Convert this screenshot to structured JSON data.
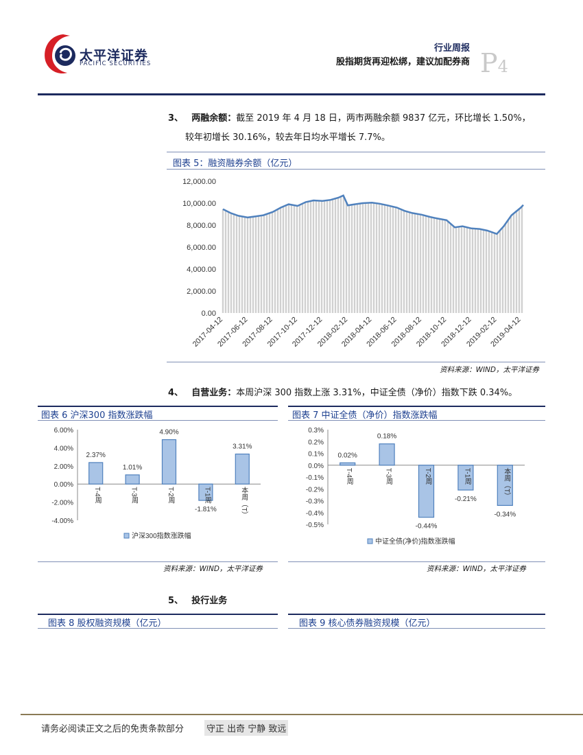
{
  "header": {
    "logo_cn": "太平洋证券",
    "logo_en": "PACIFIC SECURITIES",
    "category": "行业周报",
    "title": "股指期货再迎松绑，建议加配券商",
    "page_letter": "P",
    "page_number": "4"
  },
  "section3": {
    "num": "3、",
    "heading": "两融余额：",
    "line1": "截至 2019 年 4 月 18 日，两市两融余额 9837 亿元，环比增长 1.50%，",
    "line2": "较年初增长 30.16%，较去年日均水平增长 7.7%。"
  },
  "figure5": {
    "title": "图表 5：融资融券余额（亿元）",
    "source": "资料来源：WIND，太平洋证券"
  },
  "section4": {
    "num": "4、",
    "heading": "自营业务：",
    "text": "本周沪深 300 指数上涨 3.31%，中证全债（净价）指数下跌 0.34%。"
  },
  "figure6": {
    "title": "图表 6 沪深300 指数涨跌幅",
    "source": "资料来源：WIND，太平洋证券"
  },
  "figure7": {
    "title": "图表 7 中证全债（净价）指数涨跌幅",
    "source": "资料来源：WIND，太平洋证券"
  },
  "section5": {
    "num": "5、",
    "heading": "投行业务"
  },
  "figure8": {
    "title": "图表 8 股权融资规模（亿元）"
  },
  "figure9": {
    "title": "图表 9 核心债券融资规模（亿元）"
  },
  "footer": {
    "disclaimer": "请务必阅读正文之后的免责条款部分",
    "motto": "守正 出奇 宁静 致远"
  },
  "colors": {
    "navy": "#1c2a5e",
    "bar_fill": "#a9c4e6",
    "bar_stroke": "#4f81bd",
    "line": "#4f81bd",
    "area": "#d0d0d0"
  },
  "chart_data": [
    {
      "type": "area",
      "title": "图表 5：融资融券余额（亿元）",
      "ylim": [
        0,
        12000
      ],
      "yticks": [
        "0.00",
        "2,000.00",
        "4,000.00",
        "6,000.00",
        "8,000.00",
        "10,000.00",
        "12,000.00"
      ],
      "xticks": [
        "2017-04-12",
        "2017-06-12",
        "2017-08-12",
        "2017-10-12",
        "2017-12-12",
        "2018-02-12",
        "2018-04-12",
        "2018-06-12",
        "2018-08-12",
        "2018-10-12",
        "2018-12-12",
        "2019-02-12",
        "2019-04-12"
      ],
      "series": [
        {
          "x": [
            "2017-04-12",
            "2017-05-01",
            "2017-05-20",
            "2017-06-12",
            "2017-07-01",
            "2017-07-20",
            "2017-08-12",
            "2017-09-01",
            "2017-09-20",
            "2017-10-12",
            "2017-11-01",
            "2017-11-20",
            "2017-12-12",
            "2018-01-01",
            "2018-01-20",
            "2018-02-01",
            "2018-02-12",
            "2018-03-01",
            "2018-03-20",
            "2018-04-12",
            "2018-05-01",
            "2018-05-20",
            "2018-06-12",
            "2018-07-01",
            "2018-07-20",
            "2018-08-12",
            "2018-09-01",
            "2018-09-20",
            "2018-10-12",
            "2018-11-01",
            "2018-11-20",
            "2018-12-12",
            "2019-01-01",
            "2019-01-20",
            "2019-02-12",
            "2019-03-01",
            "2019-03-20",
            "2019-04-12",
            "2019-04-18"
          ],
          "values": [
            9450,
            9100,
            8850,
            8700,
            8800,
            8900,
            9200,
            9600,
            9900,
            9750,
            10100,
            10250,
            10200,
            10300,
            10500,
            10700,
            9800,
            9900,
            10000,
            10050,
            9950,
            9800,
            9600,
            9300,
            9100,
            8950,
            8750,
            8600,
            8450,
            7800,
            7900,
            7700,
            7650,
            7500,
            7200,
            7900,
            8900,
            9600,
            9837
          ]
        }
      ]
    },
    {
      "type": "bar",
      "title": "图表 6 沪深300 指数涨跌幅",
      "categories": [
        "T-4周",
        "T-3周",
        "T-2周",
        "T-1周",
        "本周（T）"
      ],
      "series": [
        {
          "name": "沪深300指数涨跌幅",
          "values": [
            2.37,
            1.01,
            4.9,
            -1.81,
            3.31
          ]
        }
      ],
      "labels": [
        "2.37%",
        "1.01%",
        "4.90%",
        "-1.81%",
        "3.31%"
      ],
      "ylim": [
        -4,
        6
      ],
      "yticks": [
        "-4.00%",
        "-2.00%",
        "0.00%",
        "2.00%",
        "4.00%",
        "6.00%"
      ]
    },
    {
      "type": "bar",
      "title": "图表 7 中证全债（净价）指数涨跌幅",
      "categories": [
        "T-4周",
        "T-3周",
        "T-2周",
        "T-1周",
        "本周（T）"
      ],
      "series": [
        {
          "name": "中证全债(净价)指数涨跌幅",
          "values": [
            0.02,
            0.18,
            -0.44,
            -0.21,
            -0.34
          ]
        }
      ],
      "labels": [
        "0.02%",
        "0.18%",
        "-0.44%",
        "-0.21%",
        "-0.34%"
      ],
      "ylim": [
        -0.5,
        0.3
      ],
      "yticks": [
        "-0.5%",
        "-0.4%",
        "-0.3%",
        "-0.2%",
        "-0.1%",
        "0.0%",
        "0.1%",
        "0.2%",
        "0.3%"
      ]
    }
  ]
}
